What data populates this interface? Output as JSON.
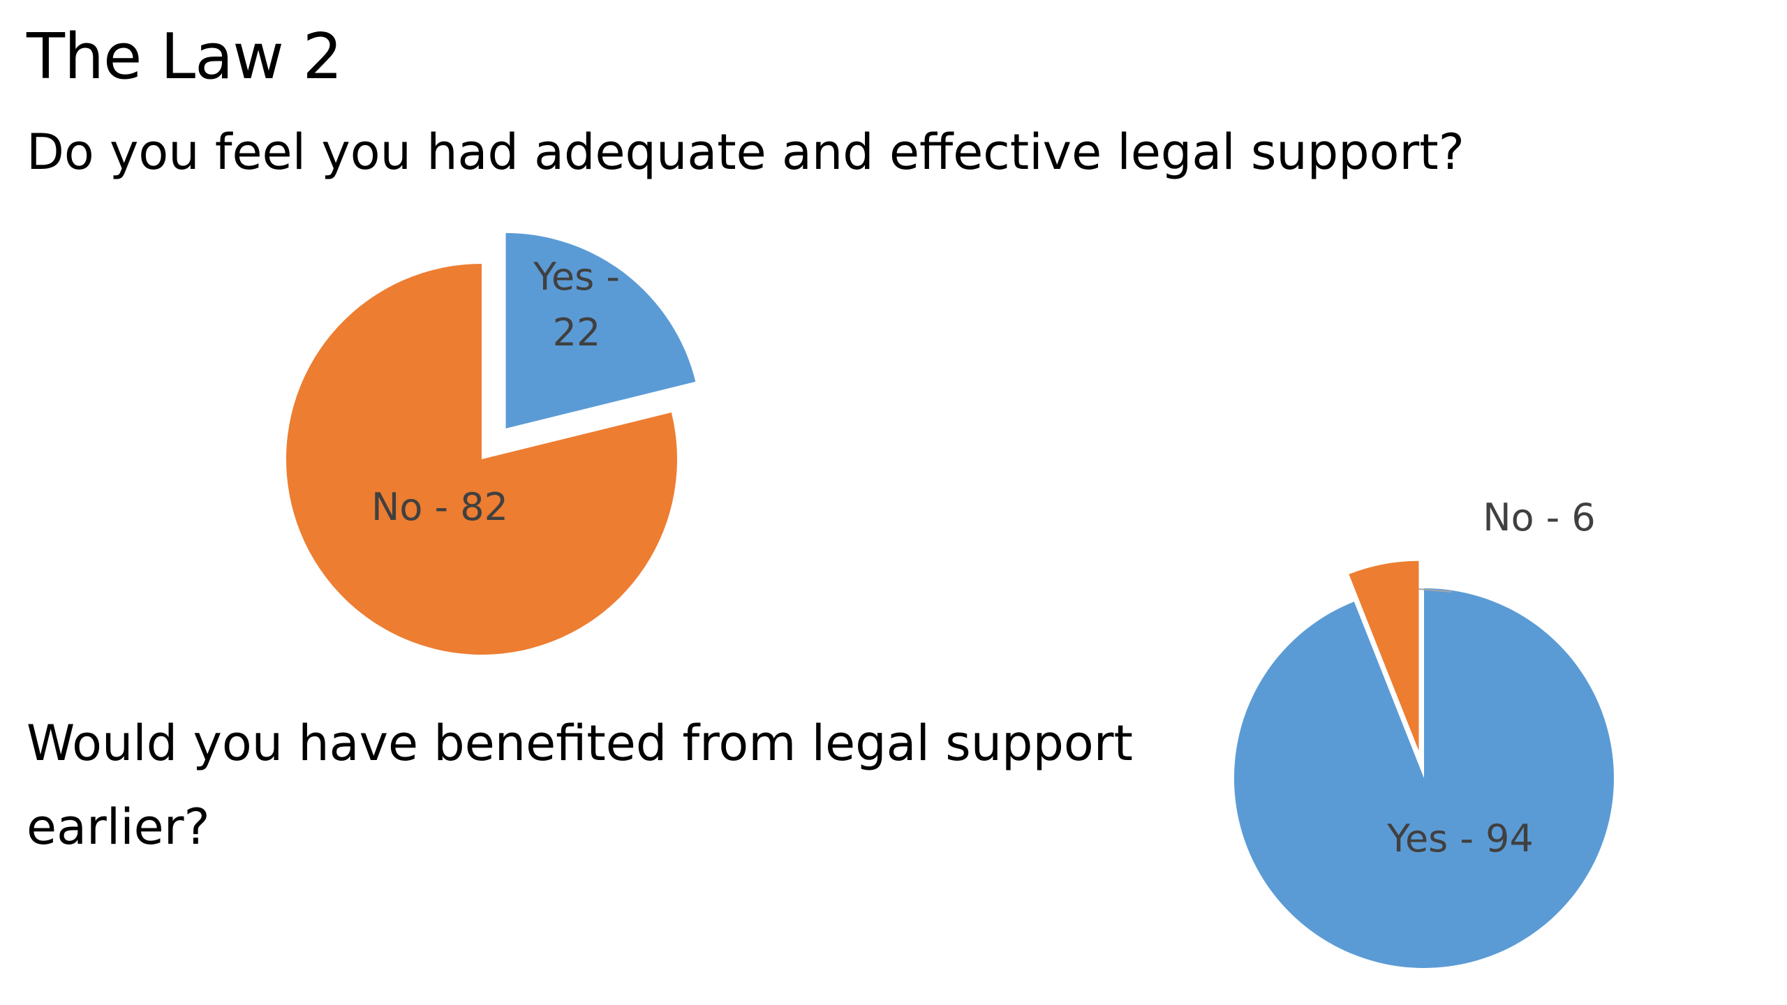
{
  "slide": {
    "title": "The Law 2",
    "question_1": "Do you feel you had adequate and effective legal support?",
    "question_2_line_1": "Would you have benefited from legal support",
    "question_2_line_2": "earlier?"
  },
  "colors": {
    "yes": "#5B9BD5",
    "no": "#ED7D31",
    "label_text": "#404040",
    "leader_line": "#A6A6A6"
  },
  "chart_data": [
    {
      "type": "pie",
      "title": "",
      "exploded_slice": "Yes",
      "slices": [
        {
          "label": "Yes",
          "value": 22,
          "data_label": "Yes - 22",
          "color": "#5B9BD5"
        },
        {
          "label": "No",
          "value": 82,
          "data_label": "No - 82",
          "color": "#ED7D31"
        }
      ]
    },
    {
      "type": "pie",
      "title": "",
      "exploded_slice": "No",
      "slices": [
        {
          "label": "No",
          "value": 6,
          "data_label": "No - 6",
          "color": "#ED7D31"
        },
        {
          "label": "Yes",
          "value": 94,
          "data_label": "Yes - 94",
          "color": "#5B9BD5"
        }
      ]
    }
  ]
}
